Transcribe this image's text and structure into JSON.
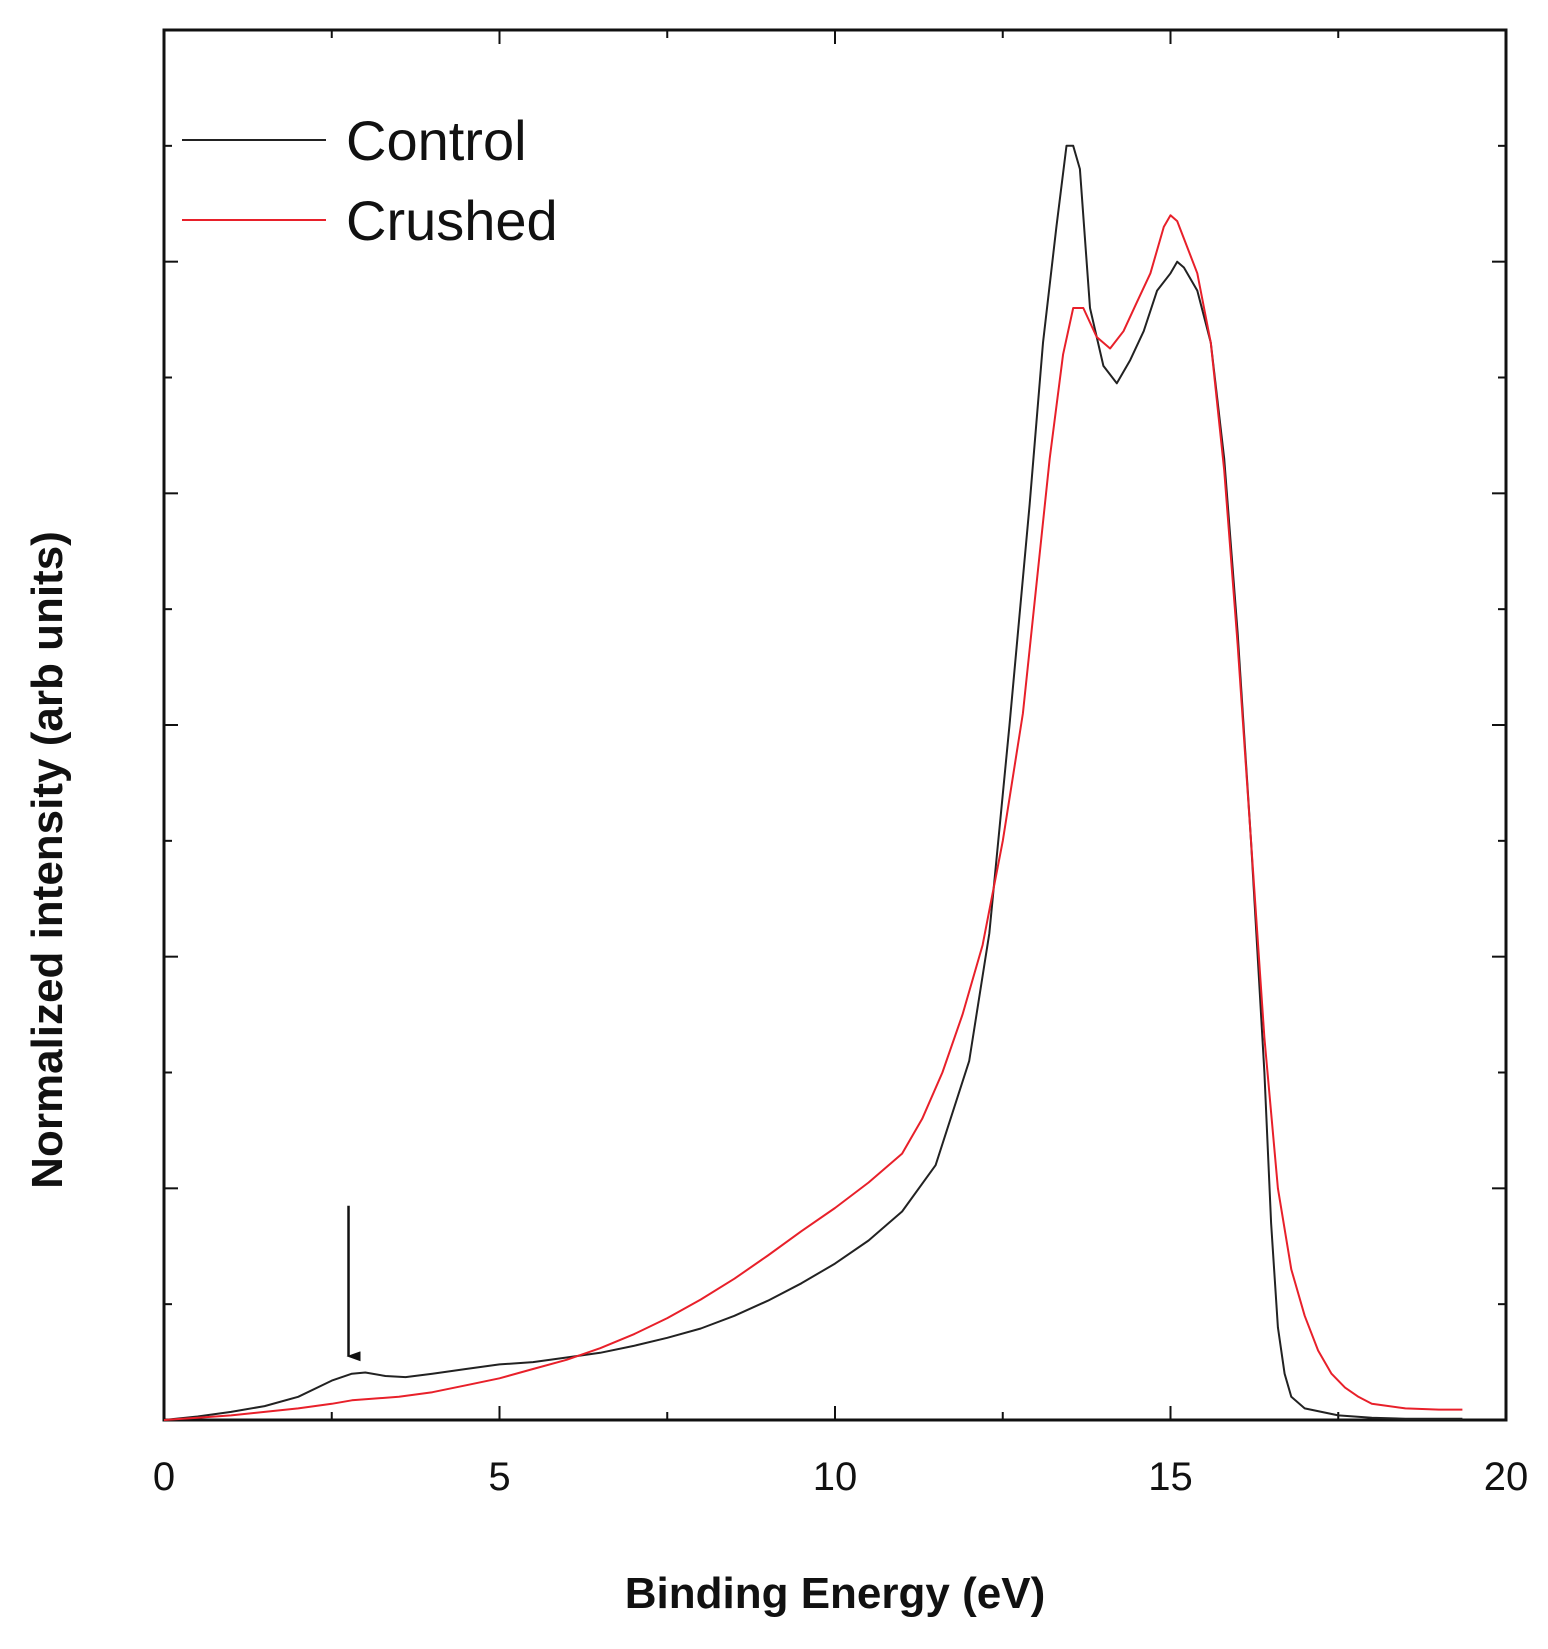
{
  "chart_data": {
    "type": "line",
    "xlabel": "Binding Energy (eV)",
    "ylabel": "Normalized intensity (arb units)",
    "xlim": [
      0,
      20
    ],
    "ylim": [
      0,
      1.2
    ],
    "x_ticks": [
      0,
      5,
      10,
      15,
      20
    ],
    "x_tick_labels": [
      "0",
      "5",
      "10",
      "15",
      "20"
    ],
    "y_tick_labels_shown": false,
    "grid": false,
    "legend_position": "top-left",
    "series": [
      {
        "name": "Control",
        "color": "#222222",
        "x": [
          0,
          0.5,
          1,
          1.5,
          2,
          2.5,
          2.8,
          3,
          3.3,
          3.6,
          4,
          4.5,
          5,
          5.5,
          6,
          6.5,
          7,
          7.5,
          8,
          8.5,
          9,
          9.5,
          10,
          10.5,
          11,
          11.5,
          12,
          12.3,
          12.6,
          12.9,
          13.1,
          13.3,
          13.45,
          13.55,
          13.65,
          13.8,
          14,
          14.2,
          14.4,
          14.6,
          14.8,
          15,
          15.1,
          15.2,
          15.4,
          15.6,
          15.8,
          16,
          16.2,
          16.4,
          16.5,
          16.6,
          16.7,
          16.8,
          17,
          17.5,
          18,
          18.5,
          19,
          19.35
        ],
        "y": [
          0,
          0.003,
          0.007,
          0.012,
          0.02,
          0.034,
          0.04,
          0.041,
          0.038,
          0.037,
          0.04,
          0.044,
          0.048,
          0.05,
          0.054,
          0.058,
          0.064,
          0.071,
          0.079,
          0.09,
          0.103,
          0.118,
          0.135,
          0.155,
          0.18,
          0.22,
          0.31,
          0.42,
          0.6,
          0.79,
          0.93,
          1.03,
          1.1,
          1.1,
          1.08,
          0.96,
          0.91,
          0.895,
          0.915,
          0.94,
          0.975,
          0.99,
          1.0,
          0.995,
          0.975,
          0.93,
          0.83,
          0.68,
          0.5,
          0.3,
          0.17,
          0.08,
          0.04,
          0.02,
          0.01,
          0.004,
          0.002,
          0.001,
          0.001,
          0.001
        ]
      },
      {
        "name": "Crushed",
        "color": "#e8202a",
        "x": [
          0,
          0.5,
          1,
          1.5,
          2,
          2.5,
          2.8,
          3,
          3.5,
          4,
          4.5,
          5,
          5.5,
          6,
          6.5,
          7,
          7.5,
          8,
          8.5,
          9,
          9.5,
          10,
          10.5,
          11,
          11.3,
          11.6,
          11.9,
          12.2,
          12.5,
          12.8,
          13,
          13.2,
          13.4,
          13.55,
          13.7,
          13.9,
          14.1,
          14.3,
          14.5,
          14.7,
          14.9,
          15,
          15.1,
          15.2,
          15.4,
          15.6,
          15.8,
          16,
          16.2,
          16.4,
          16.6,
          16.8,
          17,
          17.2,
          17.4,
          17.6,
          17.8,
          18,
          18.5,
          19,
          19.35
        ],
        "y": [
          0,
          0.002,
          0.004,
          0.007,
          0.01,
          0.014,
          0.017,
          0.018,
          0.02,
          0.024,
          0.03,
          0.036,
          0.044,
          0.052,
          0.062,
          0.074,
          0.088,
          0.104,
          0.122,
          0.142,
          0.163,
          0.183,
          0.205,
          0.23,
          0.26,
          0.3,
          0.35,
          0.41,
          0.5,
          0.61,
          0.72,
          0.83,
          0.92,
          0.96,
          0.96,
          0.935,
          0.925,
          0.94,
          0.965,
          0.99,
          1.03,
          1.04,
          1.035,
          1.02,
          0.99,
          0.93,
          0.82,
          0.67,
          0.5,
          0.33,
          0.2,
          0.13,
          0.09,
          0.06,
          0.04,
          0.028,
          0.02,
          0.014,
          0.01,
          0.009,
          0.009
        ]
      }
    ],
    "annotations": [
      {
        "type": "arrow",
        "direction": "down",
        "x": 2.75,
        "y_from": 0.185,
        "y_to": 0.055
      }
    ]
  }
}
